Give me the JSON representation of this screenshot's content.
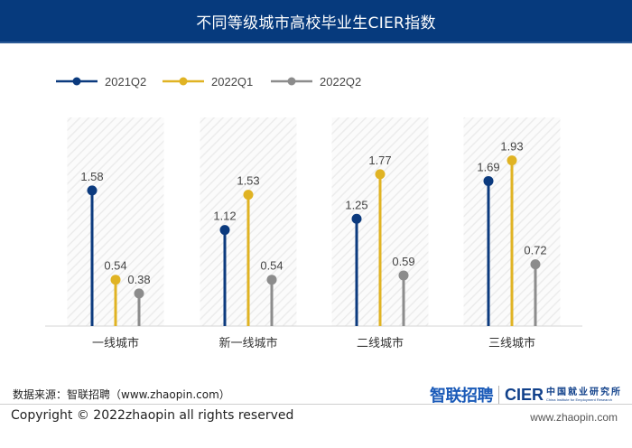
{
  "header": {
    "title": "不同等级城市高校毕业生CIER指数"
  },
  "chart_data": {
    "type": "lollipop",
    "title": "不同等级城市高校毕业生CIER指数",
    "xlabel": "",
    "ylabel": "",
    "categories": [
      "一线城市",
      "新一线城市",
      "二线城市",
      "三线城市"
    ],
    "series": [
      {
        "name": "2021Q2",
        "color": "#0b3a7e",
        "values": [
          1.58,
          1.12,
          1.25,
          1.69
        ]
      },
      {
        "name": "2022Q1",
        "color": "#e0b323",
        "values": [
          0.54,
          1.53,
          1.77,
          1.93
        ]
      },
      {
        "name": "2022Q2",
        "color": "#8c8c8c",
        "values": [
          0.38,
          0.54,
          0.59,
          0.72
        ]
      }
    ],
    "ylim": [
      0,
      2.2
    ],
    "grid": false,
    "legend": "top-left",
    "data_labels": true
  },
  "footer": {
    "source": "数据来源：智联招聘（www.zhaopin.com）",
    "copyright": "Copyright ©  2022zhaopin all rights reserved",
    "site": "www.zhaopin.com",
    "logo_zhaopin": "智联招聘",
    "logo_cier": "CIER",
    "logo_cier_cn": "中国就业研究所",
    "logo_cier_en": "China Institute for Employment Research"
  }
}
